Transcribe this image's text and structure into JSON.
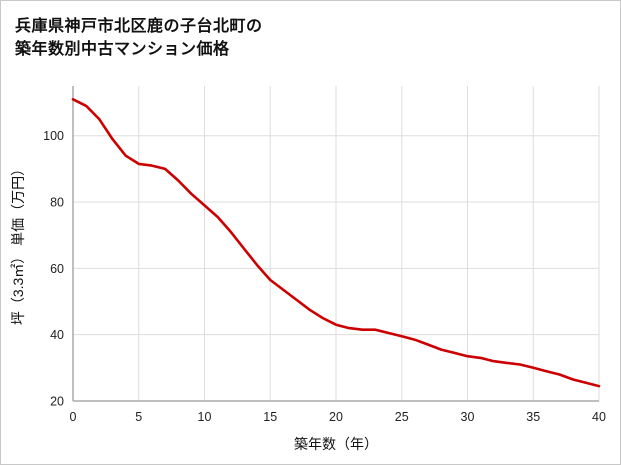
{
  "title": {
    "line1": "兵庫県神戸市北区鹿の子台北町の",
    "line2": "築年数別中古マンション価格"
  },
  "chart_data": {
    "type": "line",
    "title": "兵庫県神戸市北区鹿の子台北町の築年数別中古マンション価格",
    "xlabel": "築年数（年）",
    "ylabel": "坪（3.3㎡） 単価（万円）",
    "x": [
      0,
      1,
      2,
      3,
      4,
      5,
      6,
      7,
      8,
      9,
      10,
      11,
      12,
      13,
      14,
      15,
      16,
      17,
      18,
      19,
      20,
      21,
      22,
      23,
      24,
      25,
      26,
      27,
      28,
      29,
      30,
      31,
      32,
      33,
      34,
      35,
      36,
      37,
      38,
      39,
      40
    ],
    "values": [
      111,
      109,
      105,
      99,
      94,
      91.5,
      91,
      90,
      86.5,
      82.5,
      79,
      75.5,
      71,
      66,
      61,
      56.5,
      53.5,
      50.5,
      47.5,
      45,
      43,
      42,
      41.5,
      41.5,
      40.5,
      39.5,
      38.5,
      37,
      35.5,
      34.5,
      33.5,
      33,
      32,
      31.5,
      31,
      30,
      29,
      28,
      26.5,
      25.5,
      24.5
    ],
    "xlim": [
      0,
      40
    ],
    "ylim": [
      20,
      115
    ],
    "x_ticks": [
      0,
      5,
      10,
      15,
      20,
      25,
      30,
      35,
      40
    ],
    "y_ticks": [
      20,
      40,
      60,
      80,
      100
    ],
    "grid": true,
    "legend": "none",
    "line_color": "#cc0000",
    "axis_color": "#aaaaaa",
    "grid_color": "#dddddd"
  }
}
